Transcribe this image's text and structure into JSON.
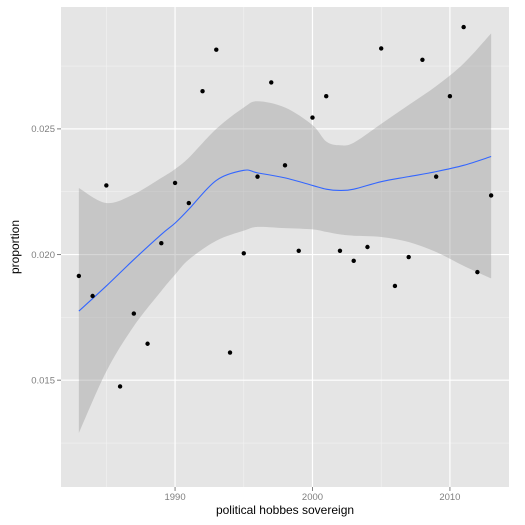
{
  "chart_data": {
    "type": "scatter",
    "title": "",
    "xlabel": "political hobbes sovereign",
    "ylabel": "proportion",
    "xlim": [
      1981.7,
      2014.3
    ],
    "ylim": [
      0.01075,
      0.02985
    ],
    "x_ticks": [
      1990,
      2000,
      2010
    ],
    "x_tick_labels": [
      "1990",
      "2000",
      "2010"
    ],
    "y_ticks": [
      0.015,
      0.02,
      0.025
    ],
    "y_tick_labels": [
      "0.015",
      "0.020",
      "0.025"
    ],
    "grid": true,
    "legend": "none",
    "colors": {
      "panel_background": "#e5e5e5",
      "grid_major": "#ffffff",
      "grid_minor": "#f2f2f2",
      "point": "#000000",
      "smooth_line": "#3366ff",
      "confidence_band": "#999999"
    },
    "points": [
      {
        "x": 1983,
        "y": 0.01915
      },
      {
        "x": 1984,
        "y": 0.01835
      },
      {
        "x": 1985,
        "y": 0.02275
      },
      {
        "x": 1986,
        "y": 0.01475
      },
      {
        "x": 1987,
        "y": 0.01765
      },
      {
        "x": 1988,
        "y": 0.01645
      },
      {
        "x": 1989,
        "y": 0.02045
      },
      {
        "x": 1990,
        "y": 0.02285
      },
      {
        "x": 1991,
        "y": 0.02205
      },
      {
        "x": 1992,
        "y": 0.0265
      },
      {
        "x": 1993,
        "y": 0.02815
      },
      {
        "x": 1994,
        "y": 0.0161
      },
      {
        "x": 1995,
        "y": 0.02005
      },
      {
        "x": 1996,
        "y": 0.0231
      },
      {
        "x": 1997,
        "y": 0.02685
      },
      {
        "x": 1998,
        "y": 0.02355
      },
      {
        "x": 1999,
        "y": 0.02015
      },
      {
        "x": 2000,
        "y": 0.02545
      },
      {
        "x": 2001,
        "y": 0.0263
      },
      {
        "x": 2002,
        "y": 0.02015
      },
      {
        "x": 2003,
        "y": 0.01975
      },
      {
        "x": 2004,
        "y": 0.0203
      },
      {
        "x": 2005,
        "y": 0.0282
      },
      {
        "x": 2006,
        "y": 0.01875
      },
      {
        "x": 2007,
        "y": 0.0199
      },
      {
        "x": 2008,
        "y": 0.02775
      },
      {
        "x": 2009,
        "y": 0.0231
      },
      {
        "x": 2010,
        "y": 0.0263
      },
      {
        "x": 2011,
        "y": 0.02905
      },
      {
        "x": 2012,
        "y": 0.0193
      },
      {
        "x": 2013,
        "y": 0.02235
      }
    ],
    "smooth": {
      "method": "loess",
      "x": [
        1983,
        1985,
        1987,
        1989,
        1990,
        1991,
        1993,
        1995,
        1996,
        1998,
        2000,
        2001,
        2002,
        2003,
        2005,
        2007,
        2009,
        2011,
        2013
      ],
      "y": [
        0.01775,
        0.01875,
        0.0198,
        0.0208,
        0.02125,
        0.0218,
        0.02295,
        0.02335,
        0.02325,
        0.02305,
        0.02275,
        0.0226,
        0.02255,
        0.0226,
        0.0229,
        0.0231,
        0.0233,
        0.02355,
        0.0239
      ],
      "lower": [
        0.0129,
        0.01535,
        0.01715,
        0.01855,
        0.0192,
        0.0198,
        0.02055,
        0.02095,
        0.0211,
        0.02105,
        0.021,
        0.0209,
        0.0208,
        0.02075,
        0.0207,
        0.0205,
        0.0201,
        0.01955,
        0.01905
      ],
      "upper": [
        0.02265,
        0.02205,
        0.0224,
        0.02305,
        0.0234,
        0.02385,
        0.025,
        0.02585,
        0.0261,
        0.02585,
        0.02515,
        0.0245,
        0.02435,
        0.02445,
        0.0252,
        0.02595,
        0.0267,
        0.0276,
        0.0288
      ]
    }
  }
}
